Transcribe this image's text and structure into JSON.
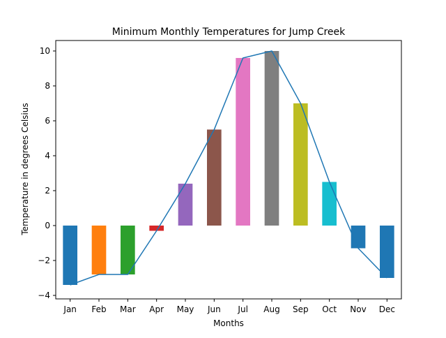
{
  "chart_data": {
    "type": "bar",
    "title": "Minimum Monthly Temperatures for Jump Creek",
    "xlabel": "Months",
    "ylabel": "Temperature in degrees Celsius",
    "categories": [
      "Jan",
      "Feb",
      "Mar",
      "Apr",
      "May",
      "Jun",
      "Jul",
      "Aug",
      "Sep",
      "Oct",
      "Nov",
      "Dec"
    ],
    "values": [
      -3.4,
      -2.8,
      -2.8,
      -0.3,
      2.4,
      5.5,
      9.6,
      10.0,
      7.0,
      2.5,
      -1.3,
      -3.0
    ],
    "ylim": [
      -4.2,
      10.6
    ],
    "yticks": [
      -4,
      -2,
      0,
      2,
      4,
      6,
      8,
      10
    ],
    "bar_colors": [
      "#1f77b4",
      "#ff7f0e",
      "#2ca02c",
      "#d62728",
      "#9467bd",
      "#8c564b",
      "#e377c2",
      "#7f7f7f",
      "#bcbd22",
      "#17becf",
      "#1f77b4",
      "#1f77b4"
    ],
    "line_color": "#1f77b4",
    "overlay": "line",
    "grid": false,
    "legend": "none"
  }
}
